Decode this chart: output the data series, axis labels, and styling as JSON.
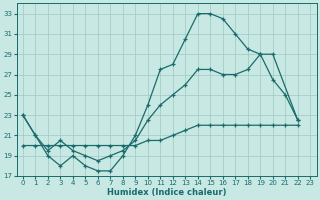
{
  "xlabel": "Humidex (Indice chaleur)",
  "xlim": [
    -0.5,
    23.5
  ],
  "ylim": [
    17,
    34
  ],
  "yticks": [
    17,
    19,
    21,
    23,
    25,
    27,
    29,
    31,
    33
  ],
  "xticks": [
    0,
    1,
    2,
    3,
    4,
    5,
    6,
    7,
    8,
    9,
    10,
    11,
    12,
    13,
    14,
    15,
    16,
    17,
    18,
    19,
    20,
    21,
    22,
    23
  ],
  "bg_color": "#c8e8e4",
  "grid_color": "#a0c8c4",
  "line_color": "#1a6b6b",
  "line1_x": [
    0,
    1,
    2,
    3,
    4,
    5,
    6,
    7,
    8,
    9,
    10,
    11,
    12,
    13,
    14,
    15,
    16,
    17,
    18,
    19,
    20,
    21,
    22
  ],
  "line1_y": [
    23,
    21,
    19,
    18,
    19,
    18,
    17.5,
    17.5,
    19,
    21,
    24,
    27.5,
    28,
    30.5,
    33,
    33,
    32.5,
    31,
    29.5,
    29,
    26.5,
    25,
    22.5
  ],
  "line2_x": [
    0,
    1,
    2,
    3,
    4,
    5,
    6,
    7,
    8,
    9,
    10,
    11,
    12,
    13,
    14,
    15,
    16,
    17,
    18,
    19,
    20,
    22
  ],
  "line2_y": [
    23,
    21,
    19.5,
    20.5,
    19.5,
    19,
    18.5,
    19,
    19.5,
    20.5,
    22.5,
    24,
    25,
    26,
    27.5,
    27.5,
    27,
    27,
    27.5,
    29,
    29,
    22.5
  ],
  "line3_x": [
    0,
    1,
    2,
    3,
    4,
    5,
    6,
    7,
    8,
    9,
    10,
    11,
    12,
    13,
    14,
    15,
    16,
    17,
    18,
    19,
    20,
    21,
    22
  ],
  "line3_y": [
    20,
    20,
    20,
    20,
    20,
    20,
    20,
    20,
    20,
    20,
    20.5,
    20.5,
    21,
    21.5,
    22,
    22,
    22,
    22,
    22,
    22,
    22,
    22,
    22
  ]
}
